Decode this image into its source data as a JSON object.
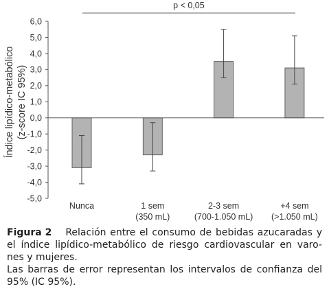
{
  "chart_data": {
    "type": "bar",
    "categories": [
      "Nunca",
      "1 sem",
      "2-3 sem",
      "+4 sem"
    ],
    "category_sublabels": [
      null,
      "(350 mL)",
      "(700-1.050 mL)",
      "(>1.050 mL)"
    ],
    "values": [
      -3.1,
      -2.3,
      3.5,
      3.1
    ],
    "error_low": [
      -4.1,
      -3.3,
      2.5,
      2.1
    ],
    "error_high": [
      -1.1,
      -0.3,
      5.5,
      5.1
    ],
    "ylabel": [
      "Índice lipídico-metabólico",
      "(z-score IC 95%)"
    ],
    "ylim": [
      -5,
      6
    ],
    "yticks": [
      6,
      5,
      4,
      3,
      2,
      1,
      0,
      -1,
      -2,
      -3,
      -4,
      -5
    ],
    "ytick_labels": [
      "6,0",
      "5,0",
      "4,0",
      "3,0",
      "2,0",
      "1,0",
      "0,0",
      "-1,0",
      "-2,0",
      "-3,0",
      "-4,0",
      "-5,0"
    ],
    "annotation": {
      "label": "p < 0,05",
      "from_category": 0,
      "to_category": 3
    },
    "grid": false,
    "colors": {
      "bar": "#b3b3b3",
      "bar_edge": "#555555",
      "axis": "#555555",
      "error_bar": "#444444"
    }
  },
  "figure_caption": {
    "label": "Figura 2",
    "title_lines": [
      "Relación entre el consumo de bebidas azucaradas y",
      "el índice lipídico-metabólico de riesgo cardiovascular en varo-",
      "nes y mujeres."
    ],
    "note_lines": [
      "Las barras de error representan los intervalos de confianza del",
      "95% (IC 95%)."
    ]
  }
}
